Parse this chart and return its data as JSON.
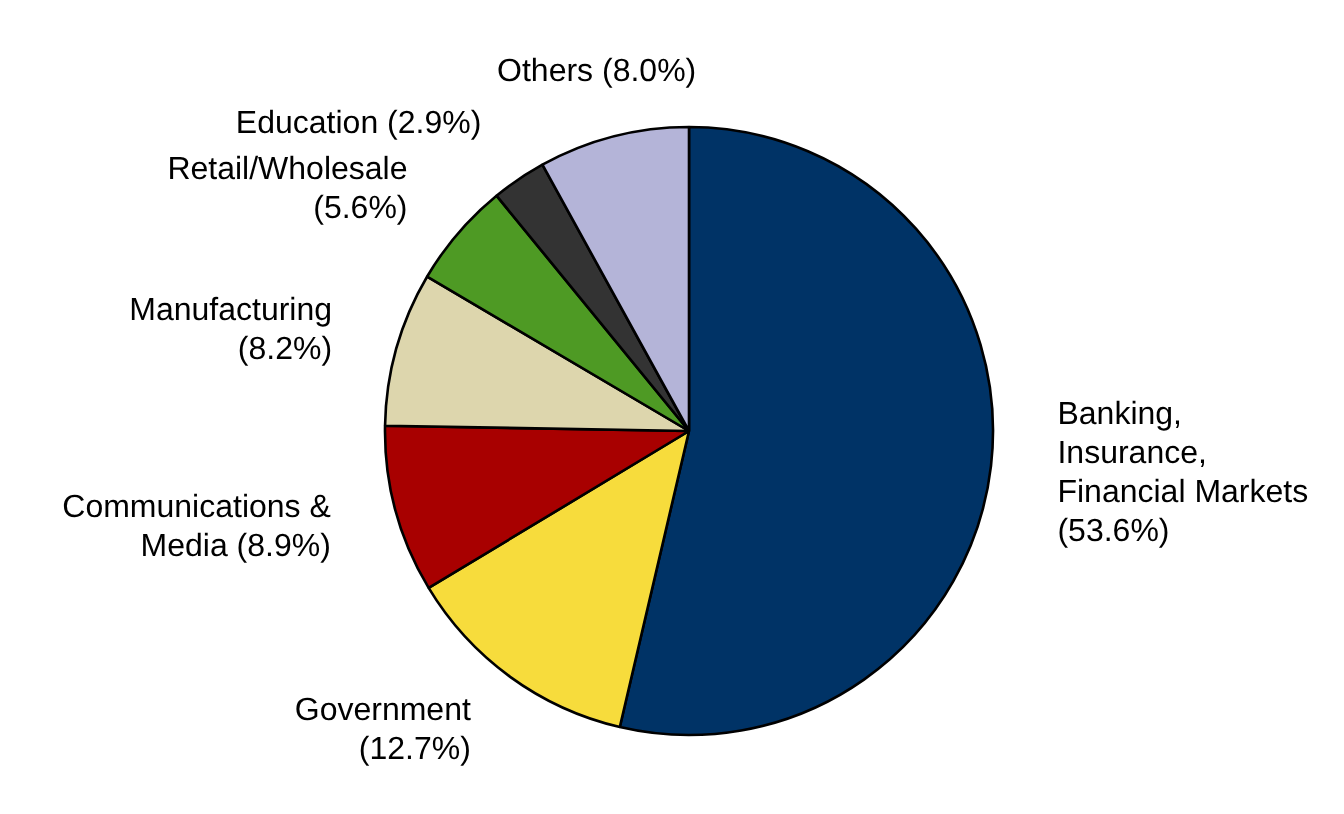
{
  "chart_data": {
    "type": "pie",
    "categories": [
      "Banking, Insurance, Financial Markets",
      "Government",
      "Communications & Media",
      "Manufacturing",
      "Retail/Wholesale",
      "Education",
      "Others"
    ],
    "values": [
      53.6,
      12.7,
      8.9,
      8.2,
      5.6,
      2.9,
      8.0
    ],
    "colors": [
      "#003366",
      "#f7dc3c",
      "#a80000",
      "#ddd6ad",
      "#4e9a24",
      "#333333",
      "#b4b4d8"
    ],
    "value_labels": [
      "(53.6%)",
      "(12.7%)",
      "(8.9%)",
      "(8.2%)",
      "(5.6%)",
      "(2.9%)",
      "(8.0%)"
    ]
  }
}
